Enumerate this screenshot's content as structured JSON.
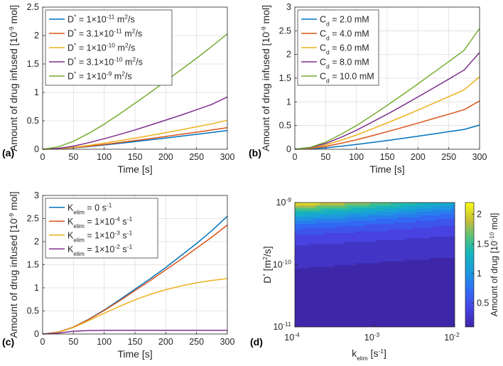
{
  "chart_data": [
    {
      "id": "a",
      "panel_label": "(a)",
      "type": "line",
      "xlabel": "Time [s]",
      "ylabel": "Amount of drug infused [10^-9 mol]",
      "xlim": [
        0,
        300
      ],
      "ylim": [
        0,
        2.5
      ],
      "x_ticks": [
        0,
        50,
        100,
        150,
        200,
        250,
        300
      ],
      "y_ticks": [
        0,
        0.5,
        1,
        1.5,
        2,
        2.5
      ],
      "grid": true,
      "legend_placement": "top-left",
      "x": [
        0,
        25,
        50,
        75,
        100,
        125,
        150,
        175,
        200,
        225,
        250,
        275,
        300
      ],
      "series": [
        {
          "name": "D* = 1×10^-11 m²/s",
          "legend": {
            "pre": "D",
            "sup1": "*",
            "mid": " = 1×10",
            "sup2": "-11",
            "post": " m",
            "sup3": "2",
            "tail": "/s"
          },
          "color": "#0072BD",
          "values": [
            0,
            0.007,
            0.025,
            0.048,
            0.075,
            0.104,
            0.135,
            0.166,
            0.198,
            0.23,
            0.262,
            0.295,
            0.33
          ]
        },
        {
          "name": "D* = 3.1×10^-11 m²/s",
          "legend": {
            "pre": "D",
            "sup1": "*",
            "mid": " = 3.1×10",
            "sup2": "-11",
            "post": " m",
            "sup3": "2",
            "tail": "/s"
          },
          "color": "#D95319",
          "values": [
            0,
            0.008,
            0.028,
            0.054,
            0.084,
            0.117,
            0.152,
            0.188,
            0.225,
            0.263,
            0.3,
            0.339,
            0.38
          ]
        },
        {
          "name": "D* = 1×10^-10 m²/s",
          "legend": {
            "pre": "D",
            "sup1": "*",
            "mid": " = 1×10",
            "sup2": "-10",
            "post": " m",
            "sup3": "2",
            "tail": "/s"
          },
          "color": "#EDB120",
          "values": [
            0,
            0.009,
            0.034,
            0.068,
            0.107,
            0.15,
            0.195,
            0.243,
            0.292,
            0.343,
            0.395,
            0.448,
            0.51
          ]
        },
        {
          "name": "D* = 3.1×10^-10 m²/s",
          "legend": {
            "pre": "D",
            "sup1": "*",
            "mid": " = 3.1×10",
            "sup2": "-10",
            "post": " m",
            "sup3": "2",
            "tail": "/s"
          },
          "color": "#7E2F8E",
          "values": [
            0,
            0.014,
            0.055,
            0.115,
            0.185,
            0.26,
            0.34,
            0.425,
            0.512,
            0.6,
            0.695,
            0.79,
            0.92
          ]
        },
        {
          "name": "D* = 1×10^-9 m²/s",
          "legend": {
            "pre": "D",
            "sup1": "*",
            "mid": " = 1×10",
            "sup2": "-9",
            "post": " m",
            "sup3": "2",
            "tail": "/s"
          },
          "color": "#77AC30",
          "values": [
            0,
            0.04,
            0.14,
            0.28,
            0.44,
            0.62,
            0.81,
            1.0,
            1.2,
            1.4,
            1.6,
            1.81,
            2.03
          ]
        }
      ]
    },
    {
      "id": "b",
      "panel_label": "(b)",
      "type": "line",
      "xlabel": "Time [s]",
      "ylabel": "Amount of drug infused [10^-9 mol]",
      "xlim": [
        0,
        300
      ],
      "ylim": [
        0,
        3
      ],
      "x_ticks": [
        0,
        50,
        100,
        150,
        200,
        250,
        300
      ],
      "y_ticks": [
        0,
        0.5,
        1,
        1.5,
        2,
        2.5,
        3
      ],
      "grid": true,
      "legend_placement": "top-left",
      "x": [
        0,
        25,
        50,
        75,
        100,
        125,
        150,
        175,
        200,
        225,
        250,
        275,
        300
      ],
      "series": [
        {
          "name": "Cd = 2.0 mM",
          "legend": {
            "pre": "C",
            "sub": "d",
            "tail": " = 2.0 mM"
          },
          "color": "#0072BD",
          "values": [
            0,
            0.008,
            0.03,
            0.063,
            0.1,
            0.142,
            0.185,
            0.23,
            0.276,
            0.323,
            0.37,
            0.418,
            0.51
          ]
        },
        {
          "name": "Cd = 4.0 mM",
          "legend": {
            "pre": "C",
            "sub": "d",
            "tail": " = 4.0 mM"
          },
          "color": "#D95319",
          "values": [
            0,
            0.016,
            0.06,
            0.126,
            0.2,
            0.284,
            0.37,
            0.46,
            0.552,
            0.646,
            0.74,
            0.836,
            1.02
          ]
        },
        {
          "name": "Cd = 6.0 mM",
          "legend": {
            "pre": "C",
            "sub": "d",
            "tail": " = 6.0 mM"
          },
          "color": "#EDB120",
          "values": [
            0,
            0.024,
            0.09,
            0.189,
            0.3,
            0.426,
            0.555,
            0.69,
            0.828,
            0.969,
            1.11,
            1.254,
            1.53
          ]
        },
        {
          "name": "Cd = 8.0 mM",
          "legend": {
            "pre": "C",
            "sub": "d",
            "tail": " = 8.0 mM"
          },
          "color": "#7E2F8E",
          "values": [
            0,
            0.032,
            0.12,
            0.252,
            0.4,
            0.568,
            0.74,
            0.92,
            1.104,
            1.292,
            1.48,
            1.672,
            2.04
          ]
        },
        {
          "name": "Cd = 10.0 mM",
          "legend": {
            "pre": "C",
            "sub": "d",
            "tail": " = 10.0 mM"
          },
          "color": "#77AC30",
          "values": [
            0,
            0.04,
            0.15,
            0.315,
            0.5,
            0.71,
            0.925,
            1.15,
            1.38,
            1.615,
            1.85,
            2.09,
            2.55
          ]
        }
      ]
    },
    {
      "id": "c",
      "panel_label": "(c)",
      "type": "line",
      "xlabel": "Time [s]",
      "ylabel": "Amount of drug infused [10^-9 mol]",
      "xlim": [
        0,
        300
      ],
      "ylim": [
        0,
        3
      ],
      "x_ticks": [
        0,
        50,
        100,
        150,
        200,
        250,
        300
      ],
      "y_ticks": [
        0,
        0.5,
        1,
        1.5,
        2,
        2.5,
        3
      ],
      "grid": true,
      "legend_placement": "top-left",
      "x": [
        0,
        25,
        50,
        75,
        100,
        125,
        150,
        175,
        200,
        225,
        250,
        275,
        300
      ],
      "series": [
        {
          "name": "Kelim = 0 s^-1",
          "legend": {
            "pre": "K",
            "sub": "elim",
            "mid": " = 0 s",
            "sup": "-1"
          },
          "color": "#0072BD",
          "values": [
            0,
            0.04,
            0.15,
            0.32,
            0.52,
            0.74,
            0.97,
            1.2,
            1.44,
            1.7,
            1.96,
            2.24,
            2.55
          ]
        },
        {
          "name": "Kelim = 1×10^-4 s^-1",
          "legend": {
            "pre": "K",
            "sub": "elim",
            "mid": " = 1×10",
            "sup0": "-4",
            "mid2": " s",
            "sup": "-1"
          },
          "color": "#D95319",
          "values": [
            0,
            0.04,
            0.15,
            0.315,
            0.51,
            0.72,
            0.94,
            1.16,
            1.39,
            1.62,
            1.86,
            2.1,
            2.36
          ]
        },
        {
          "name": "Kelim = 1×10^-3 s^-1",
          "legend": {
            "pre": "K",
            "sub": "elim",
            "mid": " = 1×10",
            "sup0": "-3",
            "mid2": " s",
            "sup": "-1"
          },
          "color": "#EDB120",
          "values": [
            0,
            0.035,
            0.14,
            0.29,
            0.45,
            0.6,
            0.74,
            0.86,
            0.96,
            1.04,
            1.11,
            1.16,
            1.2
          ]
        },
        {
          "name": "Kelim = 1×10^-2 s^-1",
          "legend": {
            "pre": "K",
            "sub": "elim",
            "mid": " = 1×10",
            "sup0": "-2",
            "mid2": " s",
            "sup": "-1"
          },
          "color": "#7E2F8E",
          "values": [
            0,
            0.02,
            0.06,
            0.075,
            0.08,
            0.08,
            0.08,
            0.08,
            0.08,
            0.08,
            0.08,
            0.08,
            0.08
          ]
        }
      ]
    },
    {
      "id": "d",
      "panel_label": "(d)",
      "type": "heatmap",
      "xlabel": "k_elim [s^-1]",
      "ylabel": "D* [m²/s]",
      "x_scale": "log",
      "y_scale": "log",
      "xlim": [
        0.0001,
        0.01
      ],
      "ylim": [
        1e-11,
        1e-09
      ],
      "x_ticks": [
        {
          "base": "10",
          "exp": "-4"
        },
        {
          "base": "10",
          "exp": "-3"
        },
        {
          "base": "10",
          "exp": "-2"
        }
      ],
      "y_ticks": [
        {
          "base": "10",
          "exp": "-11"
        },
        {
          "base": "10",
          "exp": "-10"
        },
        {
          "base": "10",
          "exp": "-9"
        }
      ],
      "colorbar_label": "Amount of drug [10^-10 mol]",
      "colorbar_ticks": [
        0.5,
        1,
        1.5,
        2
      ],
      "colorbar_range": [
        0.1,
        2.2
      ],
      "contour_levels": [
        0.25,
        0.4,
        0.55,
        0.7,
        0.85,
        1.0,
        1.15,
        1.3,
        1.45,
        1.6,
        1.75,
        1.9,
        2.05
      ]
    }
  ]
}
